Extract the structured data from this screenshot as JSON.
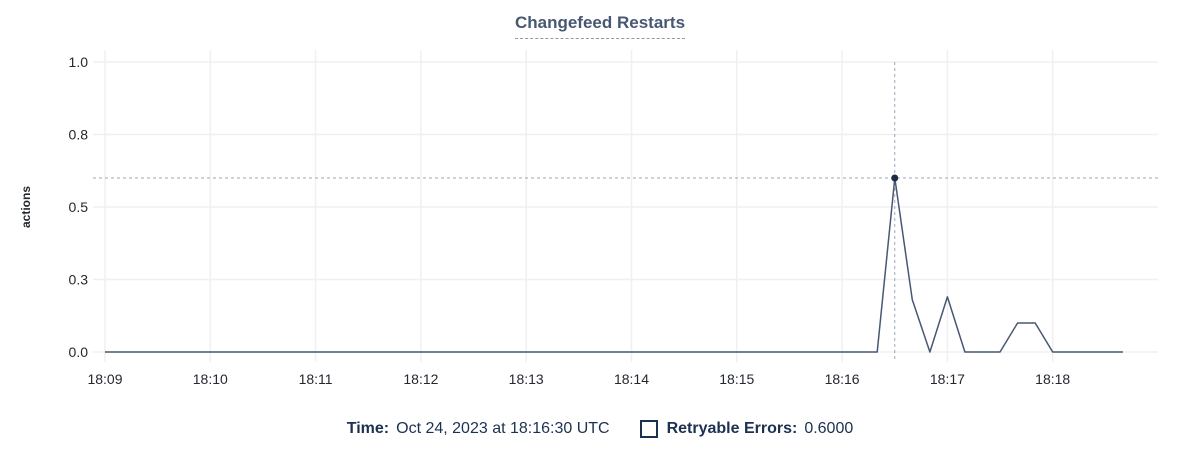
{
  "chart": {
    "title": "Changefeed Restarts"
  },
  "legend": {
    "time_label": "Time:",
    "time_value": "Oct 24, 2023 at 18:16:30 UTC",
    "checkbox_icon": "checkbox-unchecked",
    "series_label": "Retryable Errors:",
    "series_value": "0.6000"
  },
  "colors": {
    "title": "#475872",
    "line": "#475872",
    "grid": "#f0f0f2",
    "crosshair": "#9aa8b8",
    "dot": "#1d2a43",
    "axis_text": "#24282f",
    "legend_text": "#1c3150"
  },
  "chart_data": {
    "type": "line",
    "title": "Changefeed Restarts",
    "xlabel": "",
    "ylabel": "actions",
    "ylim": [
      0,
      1
    ],
    "grid": "on",
    "legend_position": "bottom-center",
    "x_window": {
      "start": "18:09:00",
      "end": "18:19:00",
      "span_seconds": 600
    },
    "y_ticks": [
      {
        "value": 0,
        "label": "0.0"
      },
      {
        "value": 0.25,
        "label": "0.3"
      },
      {
        "value": 0.5,
        "label": "0.5"
      },
      {
        "value": 0.75,
        "label": "0.8"
      },
      {
        "value": 1.0,
        "label": "1.0"
      }
    ],
    "x_ticks": [
      {
        "t": 0,
        "label": "18:09"
      },
      {
        "t": 60,
        "label": "18:10"
      },
      {
        "t": 120,
        "label": "18:11"
      },
      {
        "t": 180,
        "label": "18:12"
      },
      {
        "t": 240,
        "label": "18:13"
      },
      {
        "t": 300,
        "label": "18:14"
      },
      {
        "t": 360,
        "label": "18:15"
      },
      {
        "t": 420,
        "label": "18:16"
      },
      {
        "t": 480,
        "label": "18:17"
      },
      {
        "t": 540,
        "label": "18:18"
      }
    ],
    "series": [
      {
        "name": "Retryable Errors",
        "start_offset_seconds": 0,
        "interval_seconds": 10,
        "values": [
          0,
          0,
          0,
          0,
          0,
          0,
          0,
          0,
          0,
          0,
          0,
          0,
          0,
          0,
          0,
          0,
          0,
          0,
          0,
          0,
          0,
          0,
          0,
          0,
          0,
          0,
          0,
          0,
          0,
          0,
          0,
          0,
          0,
          0,
          0,
          0,
          0,
          0,
          0,
          0,
          0,
          0,
          0,
          0,
          0,
          0.6,
          0.18,
          0,
          0.19,
          0,
          0,
          0,
          0.1,
          0.1,
          0,
          0,
          0,
          0,
          0
        ]
      }
    ],
    "crosshair": {
      "t_seconds": 450,
      "value": 0.6,
      "time_label": "18:16:30"
    }
  }
}
